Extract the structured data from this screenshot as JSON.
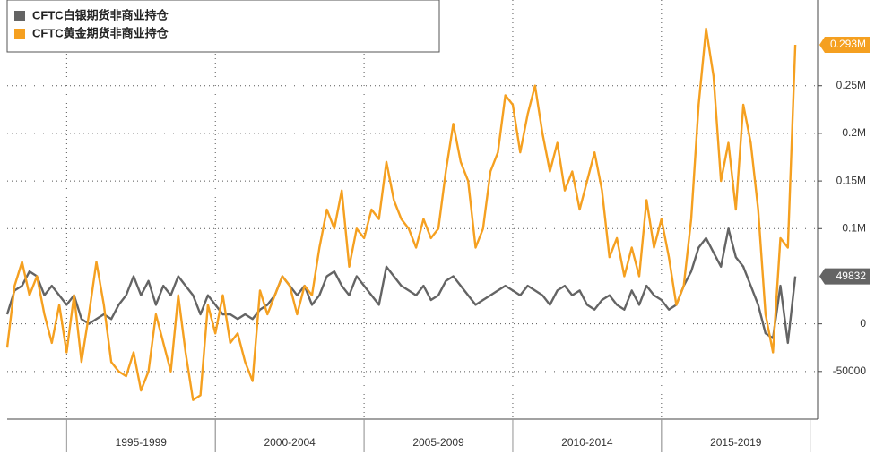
{
  "chart_data": {
    "type": "line",
    "xlim": [
      1993,
      2020.25
    ],
    "ylim": [
      -100000,
      340000
    ],
    "yticks": [
      {
        "value": -50000,
        "label": "-50000"
      },
      0,
      {
        "value": 100000,
        "label": "0.1M"
      },
      {
        "value": 150000,
        "label": "0.15M"
      },
      {
        "value": 200000,
        "label": "0.2M"
      },
      {
        "value": 250000,
        "label": "0.25M"
      }
    ],
    "x_bands": [
      {
        "label": "1995-1999",
        "from": 1995,
        "to": 2000
      },
      {
        "label": "2000-2004",
        "from": 2000,
        "to": 2005
      },
      {
        "label": "2005-2009",
        "from": 2005,
        "to": 2010
      },
      {
        "label": "2010-2014",
        "from": 2010,
        "to": 2015
      },
      {
        "label": "2015-2019",
        "from": 2015,
        "to": 2020
      }
    ],
    "grid": true,
    "legend": "top-left",
    "x": [
      1993,
      1993.25,
      1993.5,
      1993.75,
      1994,
      1994.25,
      1994.5,
      1994.75,
      1995,
      1995.25,
      1995.5,
      1995.75,
      1996,
      1996.25,
      1996.5,
      1996.75,
      1997,
      1997.25,
      1997.5,
      1997.75,
      1998,
      1998.25,
      1998.5,
      1998.75,
      1999,
      1999.25,
      1999.5,
      1999.75,
      2000,
      2000.25,
      2000.5,
      2000.75,
      2001,
      2001.25,
      2001.5,
      2001.75,
      2002,
      2002.25,
      2002.5,
      2002.75,
      2003,
      2003.25,
      2003.5,
      2003.75,
      2004,
      2004.25,
      2004.5,
      2004.75,
      2005,
      2005.25,
      2005.5,
      2005.75,
      2006,
      2006.25,
      2006.5,
      2006.75,
      2007,
      2007.25,
      2007.5,
      2007.75,
      2008,
      2008.25,
      2008.5,
      2008.75,
      2009,
      2009.25,
      2009.5,
      2009.75,
      2010,
      2010.25,
      2010.5,
      2010.75,
      2011,
      2011.25,
      2011.5,
      2011.75,
      2012,
      2012.25,
      2012.5,
      2012.75,
      2013,
      2013.25,
      2013.5,
      2013.75,
      2014,
      2014.25,
      2014.5,
      2014.75,
      2015,
      2015.25,
      2015.5,
      2015.75,
      2016,
      2016.25,
      2016.5,
      2016.75,
      2017,
      2017.25,
      2017.5,
      2017.75,
      2018,
      2018.25,
      2018.5,
      2018.75,
      2019,
      2019.25,
      2019.5
    ],
    "series": [
      {
        "name": "CFTC白银期货非商业持仓",
        "color": "#646464",
        "end_label": "49832",
        "values": [
          10000,
          35000,
          40000,
          55000,
          50000,
          30000,
          40000,
          30000,
          20000,
          30000,
          5000,
          0,
          5000,
          10000,
          5000,
          20000,
          30000,
          50000,
          30000,
          45000,
          20000,
          40000,
          30000,
          50000,
          40000,
          30000,
          10000,
          30000,
          20000,
          10000,
          10000,
          5000,
          10000,
          5000,
          15000,
          20000,
          30000,
          50000,
          40000,
          30000,
          40000,
          20000,
          30000,
          50000,
          55000,
          40000,
          30000,
          50000,
          40000,
          30000,
          20000,
          60000,
          50000,
          40000,
          35000,
          30000,
          40000,
          25000,
          30000,
          45000,
          50000,
          40000,
          30000,
          20000,
          25000,
          30000,
          35000,
          40000,
          35000,
          30000,
          40000,
          35000,
          30000,
          20000,
          35000,
          40000,
          30000,
          35000,
          20000,
          15000,
          25000,
          30000,
          20000,
          15000,
          35000,
          20000,
          40000,
          30000,
          25000,
          15000,
          20000,
          40000,
          55000,
          80000,
          90000,
          75000,
          60000,
          100000,
          70000,
          60000,
          40000,
          20000,
          -10000,
          -15000,
          40000,
          -20000,
          49832
        ]
      },
      {
        "name": "CFTC黄金期货非商业持仓",
        "color": "#f5a020",
        "end_label": "0.293M",
        "values": [
          -25000,
          40000,
          65000,
          30000,
          50000,
          10000,
          -20000,
          20000,
          -30000,
          30000,
          -40000,
          10000,
          65000,
          20000,
          -40000,
          -50000,
          -55000,
          -30000,
          -70000,
          -50000,
          10000,
          -20000,
          -50000,
          30000,
          -30000,
          -80000,
          -75000,
          20000,
          -10000,
          30000,
          -20000,
          -10000,
          -40000,
          -60000,
          35000,
          10000,
          30000,
          50000,
          40000,
          10000,
          40000,
          30000,
          80000,
          120000,
          100000,
          140000,
          60000,
          100000,
          90000,
          120000,
          110000,
          170000,
          130000,
          110000,
          100000,
          80000,
          110000,
          90000,
          100000,
          160000,
          210000,
          170000,
          150000,
          80000,
          100000,
          160000,
          180000,
          240000,
          230000,
          180000,
          220000,
          250000,
          200000,
          160000,
          190000,
          140000,
          160000,
          120000,
          150000,
          180000,
          140000,
          70000,
          90000,
          50000,
          80000,
          50000,
          130000,
          80000,
          110000,
          70000,
          20000,
          40000,
          110000,
          230000,
          310000,
          260000,
          150000,
          190000,
          120000,
          230000,
          190000,
          120000,
          10000,
          -30000,
          90000,
          80000,
          293000
        ]
      }
    ]
  }
}
